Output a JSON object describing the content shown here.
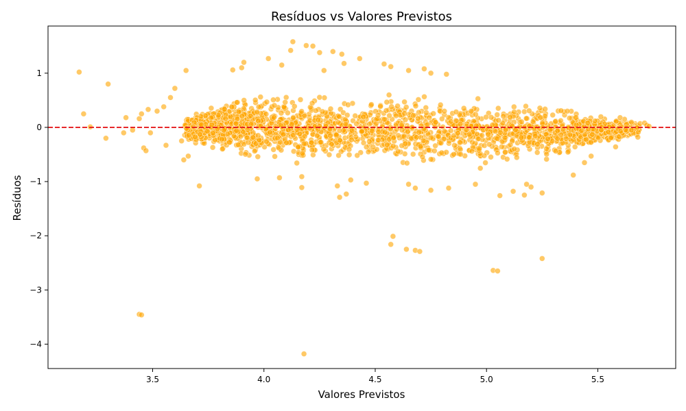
{
  "chart_data": {
    "type": "scatter",
    "title": "Resíduos vs Valores Previstos",
    "xlabel": "Valores Previstos",
    "ylabel": "Resíduos",
    "xlim": [
      3.03,
      5.85
    ],
    "ylim": [
      -4.45,
      1.87
    ],
    "x_ticks": [
      3.5,
      4.0,
      4.5,
      5.0,
      5.5
    ],
    "x_tick_labels": [
      "3.5",
      "4.0",
      "4.5",
      "5.0",
      "5.5"
    ],
    "y_ticks": [
      1,
      0,
      -1,
      -2,
      -3,
      -4
    ],
    "y_tick_labels": [
      "1",
      "0",
      "−1",
      "−2",
      "−3",
      "−4"
    ],
    "grid": false,
    "reference_line": {
      "y": 0,
      "style": "dashed",
      "color": "#e41a1c"
    },
    "marker_color": "#ffa500",
    "marker_edge_color": "#ffffff",
    "marker_alpha": 0.6,
    "dense_band": {
      "description_free": true,
      "x_range": [
        3.6,
        5.73
      ],
      "points_count": 2600,
      "upper_at_x": [
        [
          3.6,
          0.15
        ],
        [
          3.9,
          0.65
        ],
        [
          4.2,
          0.7
        ],
        [
          4.6,
          0.65
        ],
        [
          5.0,
          0.6
        ],
        [
          5.3,
          0.45
        ],
        [
          5.5,
          0.25
        ],
        [
          5.7,
          0.08
        ]
      ],
      "lower_at_x": [
        [
          3.6,
          -0.2
        ],
        [
          3.9,
          -0.65
        ],
        [
          4.2,
          -0.75
        ],
        [
          4.6,
          -0.75
        ],
        [
          5.0,
          -0.8
        ],
        [
          5.3,
          -0.65
        ],
        [
          5.5,
          -0.35
        ],
        [
          5.7,
          -0.12
        ]
      ]
    },
    "points": [
      {
        "x": 3.17,
        "y": 1.02
      },
      {
        "x": 3.19,
        "y": 0.25
      },
      {
        "x": 3.22,
        "y": 0.01
      },
      {
        "x": 3.29,
        "y": -0.2
      },
      {
        "x": 3.3,
        "y": 0.8
      },
      {
        "x": 3.38,
        "y": 0.18
      },
      {
        "x": 3.37,
        "y": -0.1
      },
      {
        "x": 3.41,
        "y": -0.05
      },
      {
        "x": 3.44,
        "y": 0.16
      },
      {
        "x": 3.45,
        "y": 0.25
      },
      {
        "x": 3.46,
        "y": -0.38
      },
      {
        "x": 3.47,
        "y": -0.43
      },
      {
        "x": 3.48,
        "y": 0.33
      },
      {
        "x": 3.49,
        "y": -0.1
      },
      {
        "x": 3.52,
        "y": 0.3
      },
      {
        "x": 3.55,
        "y": 0.38
      },
      {
        "x": 3.56,
        "y": -0.33
      },
      {
        "x": 3.58,
        "y": 0.55
      },
      {
        "x": 3.6,
        "y": 0.72
      },
      {
        "x": 3.63,
        "y": -0.25
      },
      {
        "x": 3.64,
        "y": -0.6
      },
      {
        "x": 3.65,
        "y": 1.05
      },
      {
        "x": 3.66,
        "y": -0.53
      },
      {
        "x": 3.71,
        "y": -1.08
      },
      {
        "x": 3.44,
        "y": -3.45
      },
      {
        "x": 3.45,
        "y": -3.46
      },
      {
        "x": 3.86,
        "y": 1.06
      },
      {
        "x": 3.9,
        "y": 1.1
      },
      {
        "x": 3.91,
        "y": 1.2
      },
      {
        "x": 4.02,
        "y": 1.27
      },
      {
        "x": 4.13,
        "y": 1.58
      },
      {
        "x": 4.19,
        "y": 1.51
      },
      {
        "x": 4.22,
        "y": 1.5
      },
      {
        "x": 4.25,
        "y": 1.38
      },
      {
        "x": 4.31,
        "y": 1.4
      },
      {
        "x": 4.35,
        "y": 1.35
      },
      {
        "x": 4.36,
        "y": 1.18
      },
      {
        "x": 4.43,
        "y": 1.27
      },
      {
        "x": 4.54,
        "y": 1.17
      },
      {
        "x": 4.57,
        "y": 1.12
      },
      {
        "x": 4.65,
        "y": 1.05
      },
      {
        "x": 4.72,
        "y": 1.08
      },
      {
        "x": 4.75,
        "y": 1.0
      },
      {
        "x": 4.82,
        "y": 0.98
      },
      {
        "x": 4.12,
        "y": 1.42
      },
      {
        "x": 4.08,
        "y": 1.15
      },
      {
        "x": 4.27,
        "y": 1.05
      },
      {
        "x": 3.97,
        "y": -0.95
      },
      {
        "x": 4.07,
        "y": -0.93
      },
      {
        "x": 4.17,
        "y": -0.91
      },
      {
        "x": 4.17,
        "y": -1.11
      },
      {
        "x": 4.33,
        "y": -1.08
      },
      {
        "x": 4.34,
        "y": -1.29
      },
      {
        "x": 4.37,
        "y": -1.23
      },
      {
        "x": 4.39,
        "y": -0.97
      },
      {
        "x": 4.46,
        "y": -1.03
      },
      {
        "x": 4.65,
        "y": -1.05
      },
      {
        "x": 4.68,
        "y": -1.12
      },
      {
        "x": 4.75,
        "y": -1.16
      },
      {
        "x": 4.83,
        "y": -1.12
      },
      {
        "x": 4.95,
        "y": -1.05
      },
      {
        "x": 5.06,
        "y": -1.26
      },
      {
        "x": 5.12,
        "y": -1.18
      },
      {
        "x": 5.17,
        "y": -1.25
      },
      {
        "x": 5.25,
        "y": -1.21
      },
      {
        "x": 5.2,
        "y": -1.1
      },
      {
        "x": 5.18,
        "y": -1.05
      },
      {
        "x": 4.57,
        "y": -2.16
      },
      {
        "x": 4.58,
        "y": -2.01
      },
      {
        "x": 4.64,
        "y": -2.25
      },
      {
        "x": 4.68,
        "y": -2.27
      },
      {
        "x": 4.7,
        "y": -2.29
      },
      {
        "x": 5.03,
        "y": -2.64
      },
      {
        "x": 5.05,
        "y": -2.65
      },
      {
        "x": 5.25,
        "y": -2.42
      },
      {
        "x": 4.18,
        "y": -4.18
      },
      {
        "x": 5.58,
        "y": -0.36
      },
      {
        "x": 5.62,
        "y": 0.15
      },
      {
        "x": 5.65,
        "y": -0.05
      },
      {
        "x": 5.68,
        "y": -0.18
      },
      {
        "x": 5.69,
        "y": 0.07
      },
      {
        "x": 5.71,
        "y": 0.08
      },
      {
        "x": 5.72,
        "y": 0.04
      },
      {
        "x": 5.73,
        "y": 0.02
      },
      {
        "x": 5.6,
        "y": 0.18
      },
      {
        "x": 5.44,
        "y": -0.65
      },
      {
        "x": 5.47,
        "y": -0.53
      },
      {
        "x": 5.39,
        "y": -0.88
      }
    ]
  }
}
